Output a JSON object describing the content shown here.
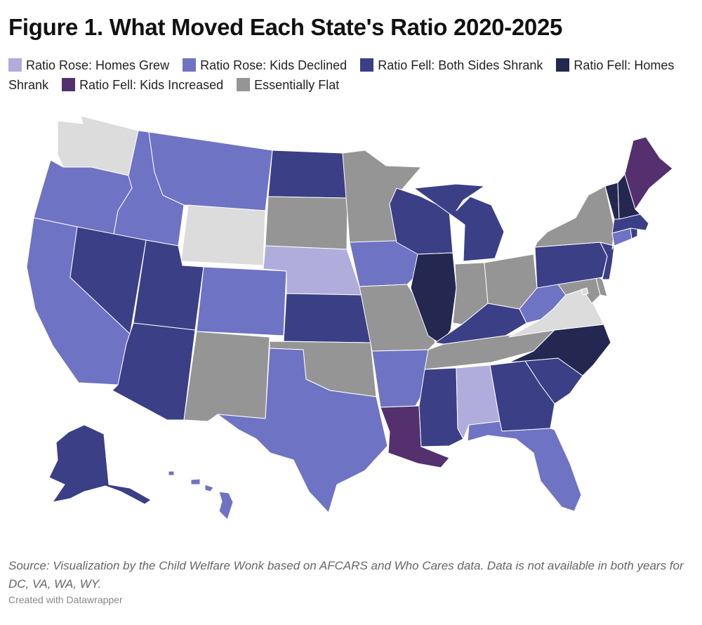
{
  "title": "Figure 1. What Moved Each State's Ratio 2020-2025",
  "legend": [
    {
      "label": "Ratio Rose: Homes Grew",
      "color": "#b0acdc"
    },
    {
      "label": "Ratio Rose: Kids Declined",
      "color": "#6f73c3"
    },
    {
      "label": "Ratio Fell: Both Sides Shrank",
      "color": "#3a3f86"
    },
    {
      "label": "Ratio Fell: Homes Shrank",
      "color": "#242750"
    },
    {
      "label": "Ratio Fell: Kids Increased",
      "color": "#54306f"
    },
    {
      "label": "Essentially Flat",
      "color": "#959595"
    }
  ],
  "no_data_color": "#dcdcdc",
  "chart_data": {
    "type": "choropleth",
    "categories": [
      "Ratio Rose: Homes Grew",
      "Ratio Rose: Kids Declined",
      "Ratio Fell: Both Sides Shrank",
      "Ratio Fell: Homes Shrank",
      "Ratio Fell: Kids Increased",
      "Essentially Flat"
    ],
    "states": {
      "WA": "No data",
      "OR": "Ratio Rose: Kids Declined",
      "CA": "Ratio Rose: Kids Declined",
      "ID": "Ratio Rose: Kids Declined",
      "NV": "Ratio Fell: Both Sides Shrank",
      "MT": "Ratio Rose: Kids Declined",
      "WY": "No data",
      "UT": "Ratio Fell: Both Sides Shrank",
      "AZ": "Ratio Fell: Both Sides Shrank",
      "CO": "Ratio Rose: Kids Declined",
      "NM": "Essentially Flat",
      "ND": "Ratio Fell: Both Sides Shrank",
      "SD": "Essentially Flat",
      "NE": "Ratio Rose: Homes Grew",
      "KS": "Ratio Fell: Both Sides Shrank",
      "OK": "Essentially Flat",
      "TX": "Ratio Rose: Kids Declined",
      "MN": "Essentially Flat",
      "IA": "Ratio Rose: Kids Declined",
      "MO": "Essentially Flat",
      "AR": "Ratio Rose: Kids Declined",
      "LA": "Ratio Fell: Kids Increased",
      "WI": "Ratio Fell: Both Sides Shrank",
      "IL": "Ratio Fell: Homes Shrank",
      "MI": "Ratio Fell: Both Sides Shrank",
      "IN": "Essentially Flat",
      "OH": "Essentially Flat",
      "KY": "Ratio Fell: Both Sides Shrank",
      "TN": "Essentially Flat",
      "MS": "Ratio Fell: Both Sides Shrank",
      "AL": "Ratio Rose: Homes Grew",
      "GA": "Ratio Fell: Both Sides Shrank",
      "FL": "Ratio Rose: Kids Declined",
      "SC": "Ratio Fell: Both Sides Shrank",
      "NC": "Ratio Fell: Homes Shrank",
      "VA": "No data",
      "WV": "Ratio Rose: Kids Declined",
      "PA": "Ratio Fell: Both Sides Shrank",
      "NY": "Essentially Flat",
      "VT": "Ratio Fell: Homes Shrank",
      "NH": "Ratio Fell: Homes Shrank",
      "ME": "Ratio Fell: Kids Increased",
      "MA": "Ratio Fell: Both Sides Shrank",
      "RI": "Ratio Fell: Both Sides Shrank",
      "CT": "Ratio Rose: Kids Declined",
      "NJ": "Ratio Fell: Both Sides Shrank",
      "DE": "Essentially Flat",
      "MD": "Essentially Flat",
      "DC": "No data",
      "AK": "Ratio Fell: Both Sides Shrank",
      "HI": "Ratio Rose: Kids Declined"
    }
  },
  "source": "Source: Visualization by the Child Welfare Wonk based on AFCARS and Who Cares data. Data is not available in both years for DC, VA, WA, WY.",
  "credit": "Created with Datawrapper"
}
